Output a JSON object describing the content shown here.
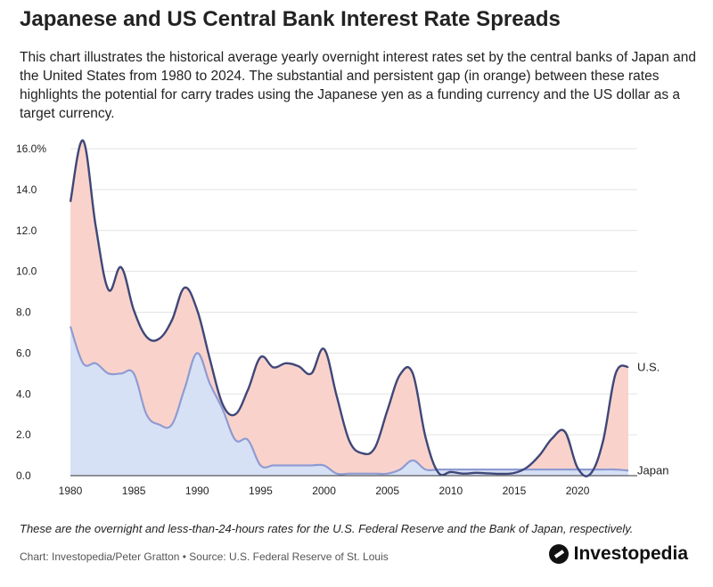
{
  "header": {
    "title": "Japanese and US Central Bank Interest Rate Spreads",
    "subtitle": "This chart illustrates the historical average yearly overnight interest rates set by the central banks of Japan and the United States from 1980 to 2024. The substantial and persistent gap (in orange) between these rates highlights the potential for carry trades using the Japanese yen as a funding currency and the US dollar as a target currency."
  },
  "footer": {
    "note": "These are the overnight and less-than-24-hours rates for the U.S. Federal Reserve and the Bank of Japan, respectively.",
    "source": "Chart: Investopedia/Peter Gratton • Source: U.S. Federal Reserve of St. Louis",
    "brand": "Investopedia"
  },
  "colors": {
    "us_line": "#3f4779",
    "japan_line": "#8f9bd2",
    "spread_fill": "#f9d3cb",
    "japan_fill": "#d7e1f5",
    "grid": "#e3e3e3"
  },
  "chart_data": {
    "type": "area",
    "x": [
      1980,
      1981,
      1982,
      1983,
      1984,
      1985,
      1986,
      1987,
      1988,
      1989,
      1990,
      1991,
      1992,
      1993,
      1994,
      1995,
      1996,
      1997,
      1998,
      1999,
      2000,
      2001,
      2002,
      2003,
      2004,
      2005,
      2006,
      2007,
      2008,
      2009,
      2010,
      2011,
      2012,
      2013,
      2014,
      2015,
      2016,
      2017,
      2018,
      2019,
      2020,
      2021,
      2022,
      2023,
      2024
    ],
    "series": [
      {
        "name": "U.S.",
        "values": [
          13.4,
          16.4,
          12.2,
          9.1,
          10.2,
          8.1,
          6.8,
          6.7,
          7.6,
          9.2,
          8.1,
          5.7,
          3.5,
          3.0,
          4.2,
          5.8,
          5.3,
          5.5,
          5.35,
          5.0,
          6.2,
          3.9,
          1.7,
          1.1,
          1.35,
          3.2,
          4.95,
          5.0,
          1.9,
          0.16,
          0.18,
          0.1,
          0.14,
          0.11,
          0.09,
          0.13,
          0.4,
          1.0,
          1.83,
          2.15,
          0.38,
          0.08,
          1.68,
          5.0,
          5.33
        ]
      },
      {
        "name": "Japan",
        "values": [
          7.3,
          5.5,
          5.5,
          5.0,
          5.0,
          5.0,
          3.0,
          2.5,
          2.5,
          4.25,
          6.0,
          4.5,
          3.25,
          1.75,
          1.75,
          0.5,
          0.5,
          0.5,
          0.5,
          0.5,
          0.5,
          0.1,
          0.1,
          0.1,
          0.1,
          0.1,
          0.3,
          0.75,
          0.3,
          0.3,
          0.3,
          0.3,
          0.3,
          0.3,
          0.3,
          0.3,
          0.3,
          0.3,
          0.3,
          0.3,
          0.3,
          0.3,
          0.3,
          0.3,
          0.25
        ]
      }
    ],
    "xticks": [
      1980,
      1985,
      1990,
      1995,
      2000,
      2005,
      2010,
      2015,
      2020
    ],
    "yticks": [
      0,
      2,
      4,
      6,
      8,
      10,
      12,
      14,
      16
    ],
    "ytick_labels": [
      "0.0",
      "2.0",
      "4.0",
      "6.0",
      "8.0",
      "10.0",
      "12.0",
      "14.0",
      "16.0%"
    ],
    "xlim": [
      1980,
      2024
    ],
    "ylim": [
      0,
      16
    ],
    "grid": true,
    "series_labels": {
      "us": "U.S.",
      "japan": "Japan"
    }
  }
}
